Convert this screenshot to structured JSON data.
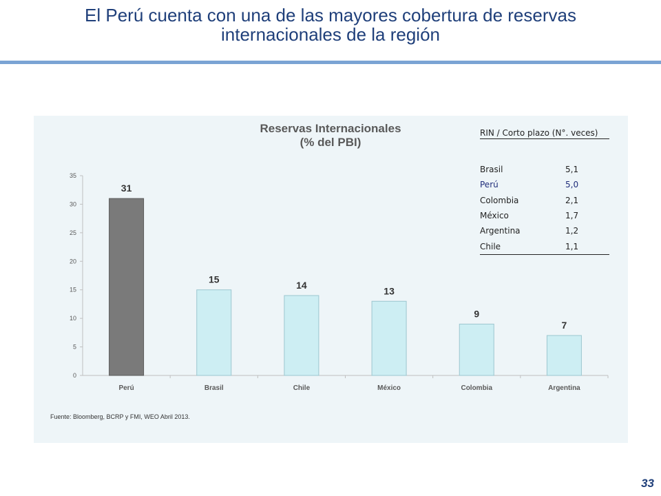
{
  "slide": {
    "title_line1": "El Perú cuenta con una de las mayores cobertura de reservas",
    "title_line2": "internacionales de la región",
    "page_number": "33"
  },
  "chart_data": {
    "type": "bar",
    "title_line1": "Reservas Internacionales",
    "title_line2": "(% del PBI)",
    "categories": [
      "Perú",
      "Brasil",
      "Chile",
      "México",
      "Colombia",
      "Argentina"
    ],
    "values": [
      31,
      15,
      14,
      13,
      9,
      7
    ],
    "data_labels": [
      "31",
      "15",
      "14",
      "13",
      "9",
      "7"
    ],
    "ylim": [
      0,
      35
    ],
    "yticks": [
      0,
      5,
      10,
      15,
      20,
      25,
      30,
      35
    ],
    "highlight_category": "Perú",
    "colors": {
      "highlight": "#7a7a7a",
      "bar": "#cdeef3",
      "bar_edge": "#9cc6cf"
    },
    "source": "Fuente: Bloomberg, BCRP y FMI, WEO Abril 2013."
  },
  "side_table": {
    "header": "RIN / Corto plazo (N°. veces)",
    "rows": [
      {
        "country": "Brasil",
        "value": "5,1"
      },
      {
        "country": "Perú",
        "value": "5,0",
        "highlight": true
      },
      {
        "country": "Colombia",
        "value": "2,1"
      },
      {
        "country": "México",
        "value": "1,7"
      },
      {
        "country": "Argentina",
        "value": "1,2"
      },
      {
        "country": "Chile",
        "value": "1,1"
      }
    ]
  }
}
